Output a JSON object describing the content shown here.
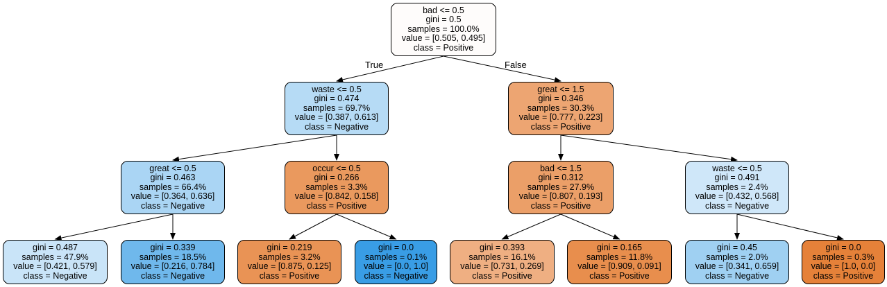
{
  "edge_labels": {
    "true_label": "True",
    "false_label": "False"
  },
  "nodes": [
    {
      "id": "root",
      "lines": [
        "bad <= 0.5",
        "gini = 0.5",
        "samples = 100.0%",
        "value = [0.505, 0.495]",
        "class = Positive"
      ],
      "fill": "#fefcfb"
    },
    {
      "id": "n1",
      "lines": [
        "waste <= 0.5",
        "gini = 0.474",
        "samples = 69.7%",
        "value = [0.387, 0.613]",
        "class = Negative"
      ],
      "fill": "#b6dbf5"
    },
    {
      "id": "n2",
      "lines": [
        "great <= 1.5",
        "gini = 0.346",
        "samples = 30.3%",
        "value = [0.777, 0.223]",
        "class = Positive"
      ],
      "fill": "#eda572"
    },
    {
      "id": "n3",
      "lines": [
        "great <= 0.5",
        "gini = 0.463",
        "samples = 66.4%",
        "value = [0.364, 0.636]",
        "class = Negative"
      ],
      "fill": "#aad5f4"
    },
    {
      "id": "n4",
      "lines": [
        "occur <= 0.5",
        "gini = 0.266",
        "samples = 3.3%",
        "value = [0.842, 0.158]",
        "class = Positive"
      ],
      "fill": "#ea995e"
    },
    {
      "id": "n5",
      "lines": [
        "bad <= 1.5",
        "gini = 0.312",
        "samples = 27.9%",
        "value = [0.807, 0.193]",
        "class = Positive"
      ],
      "fill": "#eb9f68"
    },
    {
      "id": "n6",
      "lines": [
        "waste <= 0.5",
        "gini = 0.491",
        "samples = 2.4%",
        "value = [0.432, 0.568]",
        "class = Negative"
      ],
      "fill": "#cfe7f9"
    },
    {
      "id": "l1",
      "lines": [
        "gini = 0.487",
        "samples = 47.9%",
        "value = [0.421, 0.579]",
        "class = Negative"
      ],
      "fill": "#c9e4f8"
    },
    {
      "id": "l2",
      "lines": [
        "gini = 0.339",
        "samples = 18.5%",
        "value = [0.216, 0.784]",
        "class = Negative"
      ],
      "fill": "#6fb8ec"
    },
    {
      "id": "l3",
      "lines": [
        "gini = 0.219",
        "samples = 3.2%",
        "value = [0.875, 0.125]",
        "class = Positive"
      ],
      "fill": "#e99355"
    },
    {
      "id": "l4",
      "lines": [
        "gini = 0.0",
        "samples = 0.1%",
        "value = [0.0, 1.0]",
        "class = Negative"
      ],
      "fill": "#399de5"
    },
    {
      "id": "l5",
      "lines": [
        "gini = 0.393",
        "samples = 16.1%",
        "value = [0.731, 0.269]",
        "class = Positive"
      ],
      "fill": "#efaf82"
    },
    {
      "id": "l6",
      "lines": [
        "gini = 0.165",
        "samples = 11.8%",
        "value = [0.909, 0.091]",
        "class = Positive"
      ],
      "fill": "#e88e4d"
    },
    {
      "id": "l7",
      "lines": [
        "gini = 0.45",
        "samples = 2.0%",
        "value = [0.341, 0.659]",
        "class = Negative"
      ],
      "fill": "#9fd0f2"
    },
    {
      "id": "l8",
      "lines": [
        "gini = 0.0",
        "samples = 0.3%",
        "value = [1.0, 0.0]",
        "class = Positive"
      ],
      "fill": "#e58139"
    }
  ],
  "edges": [
    [
      "root",
      "n1"
    ],
    [
      "root",
      "n2"
    ],
    [
      "n1",
      "n3"
    ],
    [
      "n1",
      "n4"
    ],
    [
      "n2",
      "n5"
    ],
    [
      "n2",
      "n6"
    ],
    [
      "n3",
      "l1"
    ],
    [
      "n3",
      "l2"
    ],
    [
      "n4",
      "l3"
    ],
    [
      "n4",
      "l4"
    ],
    [
      "n5",
      "l5"
    ],
    [
      "n5",
      "l6"
    ],
    [
      "n6",
      "l7"
    ],
    [
      "n6",
      "l8"
    ]
  ]
}
